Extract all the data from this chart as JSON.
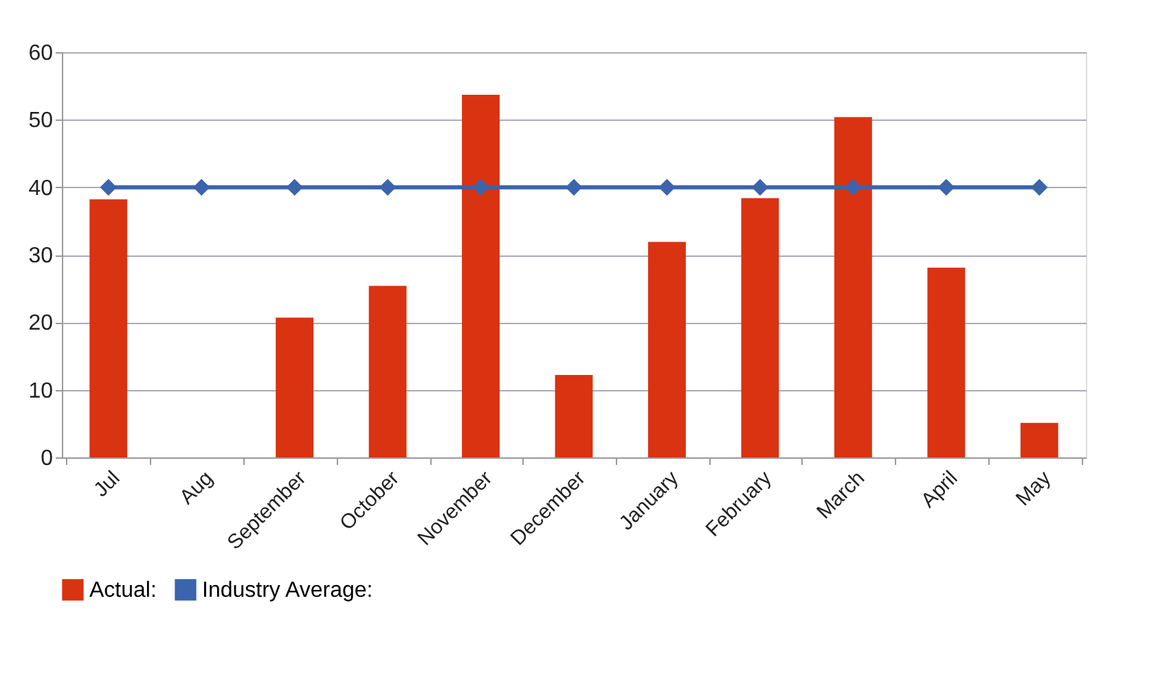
{
  "chart_data": {
    "type": "bar",
    "categories": [
      "Jul",
      "Aug",
      "September",
      "October",
      "November",
      "December",
      "January",
      "February",
      "March",
      "April",
      "May"
    ],
    "series": [
      {
        "name": "Actual:",
        "color": "#d93311",
        "values": [
          38.2,
          0,
          20.7,
          25.4,
          53.7,
          12.2,
          31.9,
          38.4,
          50.4,
          28.1,
          5.1
        ]
      },
      {
        "name": "Industry Average:",
        "type": "line",
        "color": "#3b64ad",
        "values": [
          40,
          40,
          40,
          40,
          40,
          40,
          40,
          40,
          40,
          40,
          40
        ]
      }
    ],
    "ylim": [
      0,
      60
    ],
    "yticks": [
      0,
      10,
      20,
      30,
      40,
      50,
      60
    ],
    "grid": "y",
    "legend": "bottom",
    "marker": "diamond",
    "line_style": "solid"
  }
}
